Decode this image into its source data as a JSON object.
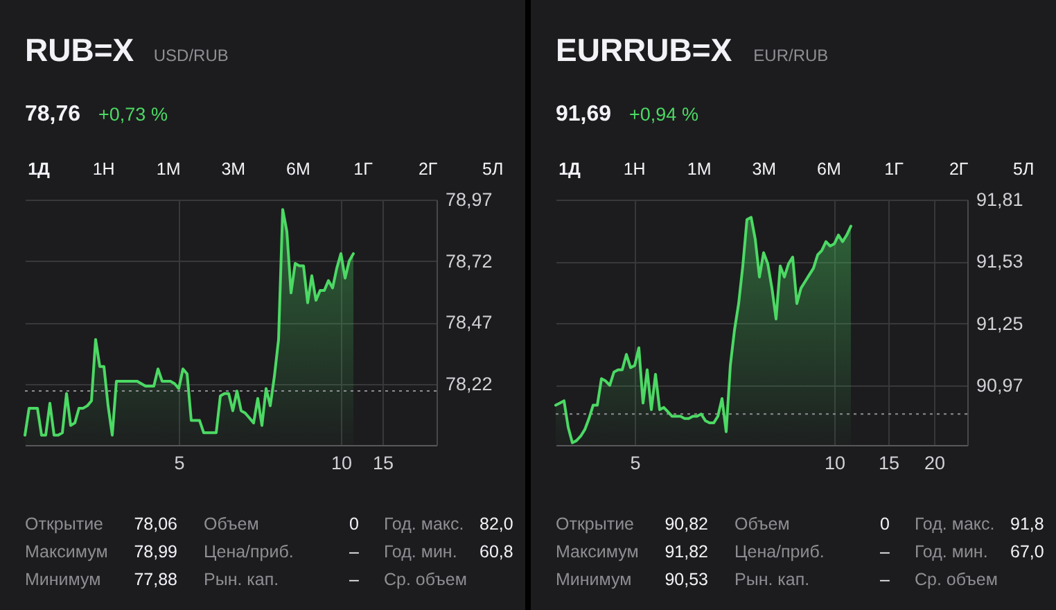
{
  "chart_data": [
    {
      "type": "area",
      "title": "RUB=X",
      "subtitle": "USD/RUB",
      "color": "#4cd964",
      "annotations": [
        "78,76",
        "+0,73 %",
        "1Д",
        "1Н",
        "1М",
        "3М",
        "6М",
        "1Г",
        "2Г",
        "5Л",
        "Открытие",
        "78,06",
        "Объем",
        "0",
        "Год. макс.",
        "82,0",
        "Максимум",
        "78,99",
        "Цена/приб.",
        "–",
        "Год. мин.",
        "60,8",
        "Минимум",
        "77,88",
        "Рын. кап.",
        "–",
        "Ср. объем"
      ],
      "categories": [
        null,
        null,
        null,
        null,
        null,
        null,
        null,
        null,
        null,
        null,
        null,
        null,
        null,
        null,
        null,
        null,
        null,
        null,
        null,
        null,
        null,
        null,
        null,
        null,
        null,
        null,
        null,
        null,
        null,
        null,
        null,
        null,
        null,
        null,
        null,
        null,
        null,
        "5",
        null,
        null,
        null,
        null,
        null,
        null,
        null,
        null,
        null,
        null,
        null,
        null,
        null,
        null,
        null,
        null,
        null,
        null,
        null,
        null,
        null,
        null,
        null,
        null,
        null,
        null,
        null,
        null,
        null,
        null,
        null,
        null,
        null,
        null,
        null,
        null,
        null,
        null,
        "10",
        null,
        null,
        null,
        null,
        null,
        null,
        null,
        null,
        null,
        "15",
        null,
        null,
        null,
        null,
        null,
        null,
        null,
        null,
        null,
        null,
        null,
        null,
        null
      ],
      "values": [
        78.01,
        78.12,
        78.12,
        78.12,
        78.01,
        78.01,
        78.14,
        78.01,
        78.01,
        78.02,
        78.18,
        78.05,
        78.06,
        78.12,
        78.12,
        78.13,
        78.15,
        78.4,
        78.29,
        78.29,
        78.13,
        78.01,
        78.23,
        78.23,
        78.23,
        78.23,
        78.23,
        78.23,
        78.22,
        78.21,
        78.21,
        78.21,
        78.28,
        78.23,
        78.23,
        78.23,
        78.22,
        78.2,
        78.28,
        78.26,
        78.07,
        78.07,
        78.07,
        78.02,
        78.02,
        78.02,
        78.02,
        78.17,
        78.18,
        78.18,
        78.11,
        78.19,
        78.11,
        78.1,
        78.08,
        78.06,
        78.16,
        78.05,
        78.2,
        78.13,
        78.25,
        78.4,
        78.93,
        78.84,
        78.59,
        78.71,
        78.7,
        78.7,
        78.55,
        78.66,
        78.56,
        78.6,
        78.6,
        78.64,
        78.61,
        78.69,
        78.75,
        78.65,
        78.72,
        78.75,
        null,
        null,
        null,
        null,
        null,
        null,
        null,
        null,
        null,
        null,
        null,
        null,
        null,
        null,
        null,
        null,
        null,
        null,
        null,
        null
      ],
      "ylim": [
        77.97,
        78.97
      ],
      "yticks": [
        {
          "value": 78.97,
          "label": "78,97"
        },
        {
          "value": 78.72,
          "label": "78,72"
        },
        {
          "value": 78.47,
          "label": "78,47"
        },
        {
          "value": 78.22,
          "label": "78,22"
        }
      ],
      "ref_lines": [
        {
          "axis": "y",
          "value": 78.19,
          "color": "#8e8e93",
          "line_style": "dotted"
        }
      ],
      "grid": true
    },
    {
      "type": "area",
      "title": "EURRUB=X",
      "subtitle": "EUR/RUB",
      "color": "#4cd964",
      "annotations": [
        "91,69",
        "+0,94 %",
        "1Д",
        "1Н",
        "1М",
        "3М",
        "6М",
        "1Г",
        "2Г",
        "5Л",
        "Открытие",
        "90,82",
        "Объем",
        "0",
        "Год. макс.",
        "91,8",
        "Максимум",
        "91,82",
        "Цена/приб.",
        "–",
        "Год. мин.",
        "67,0",
        "Минимум",
        "90,53",
        "Рын. кап.",
        "–",
        "Ср. объем"
      ],
      "categories": [
        null,
        null,
        null,
        null,
        null,
        null,
        null,
        null,
        null,
        null,
        null,
        null,
        null,
        null,
        null,
        null,
        null,
        null,
        null,
        "5",
        null,
        null,
        null,
        null,
        null,
        null,
        null,
        null,
        null,
        null,
        null,
        null,
        null,
        null,
        null,
        null,
        null,
        null,
        null,
        null,
        null,
        null,
        null,
        null,
        null,
        null,
        null,
        null,
        null,
        null,
        null,
        null,
        null,
        null,
        null,
        null,
        null,
        null,
        null,
        null,
        null,
        null,
        null,
        null,
        null,
        null,
        null,
        "10",
        null,
        null,
        null,
        null,
        null,
        null,
        null,
        null,
        null,
        null,
        null,
        null,
        "15",
        null,
        null,
        null,
        null,
        null,
        null,
        null,
        null,
        null,
        null,
        "20",
        null,
        null,
        null,
        null,
        null,
        null,
        null,
        null
      ],
      "values": [
        90.88,
        90.89,
        90.9,
        90.78,
        90.71,
        90.72,
        90.74,
        90.77,
        90.82,
        90.88,
        90.88,
        91.0,
        90.99,
        90.97,
        91.03,
        91.04,
        91.04,
        91.11,
        91.05,
        91.06,
        91.14,
        90.89,
        91.04,
        90.86,
        91.02,
        90.86,
        90.87,
        90.85,
        90.83,
        90.83,
        90.83,
        90.82,
        90.82,
        90.83,
        90.83,
        90.84,
        90.81,
        90.8,
        90.8,
        90.83,
        90.91,
        90.76,
        91.06,
        91.22,
        91.34,
        91.51,
        91.72,
        91.73,
        91.63,
        91.46,
        91.57,
        91.52,
        91.41,
        91.27,
        91.51,
        91.46,
        91.52,
        91.55,
        91.34,
        91.41,
        91.44,
        91.47,
        91.5,
        91.56,
        91.58,
        91.62,
        91.6,
        91.61,
        91.65,
        91.62,
        91.65,
        91.69,
        null,
        null,
        null,
        null,
        null,
        null,
        null,
        null,
        null,
        null,
        null,
        null,
        null,
        null,
        null,
        null,
        null,
        null,
        null,
        null,
        null,
        null,
        null,
        null,
        null,
        null,
        null,
        null
      ],
      "ylim": [
        90.7,
        91.81
      ],
      "yticks": [
        {
          "value": 91.81,
          "label": "91,81"
        },
        {
          "value": 91.53,
          "label": "91,53"
        },
        {
          "value": 91.25,
          "label": "91,25"
        },
        {
          "value": 90.97,
          "label": "90,97"
        }
      ],
      "ref_lines": [
        {
          "axis": "y",
          "value": 90.84,
          "color": "#8e8e93",
          "line_style": "dotted"
        }
      ],
      "grid": true
    }
  ]
}
